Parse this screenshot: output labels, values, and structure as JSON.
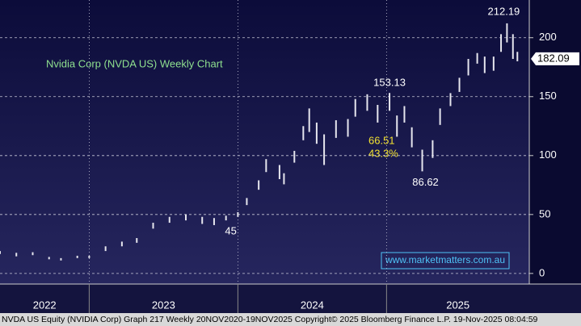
{
  "chart_data": {
    "type": "range-bar",
    "title": "Nvidia Corp (NVDA US) Weekly Chart",
    "footer": "NVDA US Equity (NVIDIA Corp) Graph 217 Weekly 20NOV2020-19NOV2025 Copyright© 2025 Bloomberg Finance L.P. 19-Nov-2025 08:04:59",
    "watermark": "www.marketmatters.com.au",
    "annotations": [
      "66.51",
      "43.3%"
    ],
    "last_value": 182.09,
    "color": "#e6e6ee",
    "x": [
      2022.4,
      2022.51,
      2022.62,
      2022.73,
      2022.81,
      2022.92,
      2023.0,
      2023.11,
      2023.22,
      2023.32,
      2023.43,
      2023.54,
      2023.65,
      2023.76,
      2023.84,
      2023.92,
      2024.0,
      2024.06,
      2024.14,
      2024.19,
      2024.28,
      2024.31,
      2024.38,
      2024.44,
      2024.48,
      2024.53,
      2024.58,
      2024.66,
      2024.74,
      2024.79,
      2024.87,
      2024.94,
      2025.02,
      2025.07,
      2025.12,
      2025.17,
      2025.24,
      2025.31,
      2025.36,
      2025.43,
      2025.49,
      2025.55,
      2025.61,
      2025.66,
      2025.72,
      2025.77,
      2025.81,
      2025.85,
      2025.88
    ],
    "high": [
      19,
      17.5,
      18,
      14,
      13,
      15,
      15,
      23,
      27,
      30,
      43,
      48,
      50,
      48,
      47,
      49,
      52,
      64,
      79,
      97,
      92,
      85,
      104,
      125,
      140,
      128,
      118,
      130,
      131,
      148,
      152,
      143,
      153.13,
      134,
      142,
      124,
      105,
      113,
      140,
      153,
      166,
      182,
      187,
      184,
      184,
      203,
      212.19,
      203,
      188
    ],
    "low": [
      16.5,
      14.5,
      15.5,
      12,
      11,
      13,
      13,
      19,
      23,
      26,
      38,
      43,
      45,
      42,
      41,
      45,
      48,
      58,
      71,
      86,
      80,
      75.61,
      94,
      113,
      120,
      110,
      92,
      115,
      116,
      133,
      138,
      128,
      138,
      116,
      128,
      107,
      86.62,
      98,
      126,
      142,
      154,
      168,
      178,
      170,
      172,
      188,
      196,
      182,
      180
    ],
    "xlim": [
      2022.4,
      2025.96
    ],
    "xticks": [
      2022,
      2023,
      2024,
      2025
    ],
    "ylim": [
      -9,
      232
    ],
    "yticks": [
      0,
      50,
      100,
      150,
      200
    ],
    "grid": true
  }
}
